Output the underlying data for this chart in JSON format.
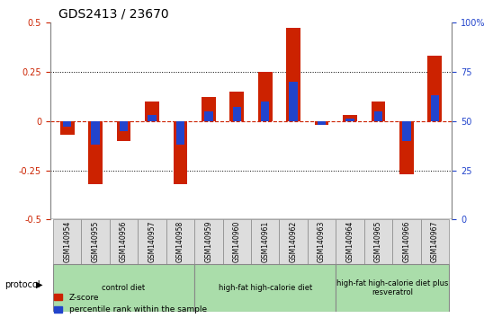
{
  "title": "GDS2413 / 23670",
  "samples": [
    "GSM140954",
    "GSM140955",
    "GSM140956",
    "GSM140957",
    "GSM140958",
    "GSM140959",
    "GSM140960",
    "GSM140961",
    "GSM140962",
    "GSM140963",
    "GSM140964",
    "GSM140965",
    "GSM140966",
    "GSM140967"
  ],
  "zscore": [
    -0.07,
    -0.32,
    -0.1,
    0.1,
    -0.32,
    0.12,
    0.15,
    0.25,
    0.47,
    -0.02,
    0.03,
    0.1,
    -0.27,
    0.33
  ],
  "percentile_offset": [
    -0.03,
    -0.12,
    -0.05,
    0.03,
    -0.12,
    0.05,
    0.07,
    0.1,
    0.2,
    -0.02,
    0.01,
    0.05,
    -0.1,
    0.13
  ],
  "zscore_color": "#cc2200",
  "percentile_color": "#2244cc",
  "ylim": [
    -0.5,
    0.5
  ],
  "yticks_left": [
    -0.5,
    -0.25,
    0.0,
    0.25,
    0.5
  ],
  "yticks_right": [
    0,
    25,
    50,
    75,
    100
  ],
  "hline_y": 0.0,
  "dotted_lines": [
    -0.25,
    0.25
  ],
  "groups": [
    {
      "label": "control diet",
      "start": 0,
      "end": 4,
      "color": "#aaddaa"
    },
    {
      "label": "high-fat high-calorie diet",
      "start": 5,
      "end": 9,
      "color": "#aaddaa"
    },
    {
      "label": "high-fat high-calorie diet plus\nresveratrol",
      "start": 10,
      "end": 13,
      "color": "#aaddaa"
    }
  ],
  "protocol_label": "protocol",
  "legend_zscore": "Z-score",
  "legend_percentile": "percentile rank within the sample",
  "bar_width": 0.5,
  "axis_bg": "#ffffff",
  "tick_label_bg": "#dddddd",
  "group_border_color": "#888888"
}
